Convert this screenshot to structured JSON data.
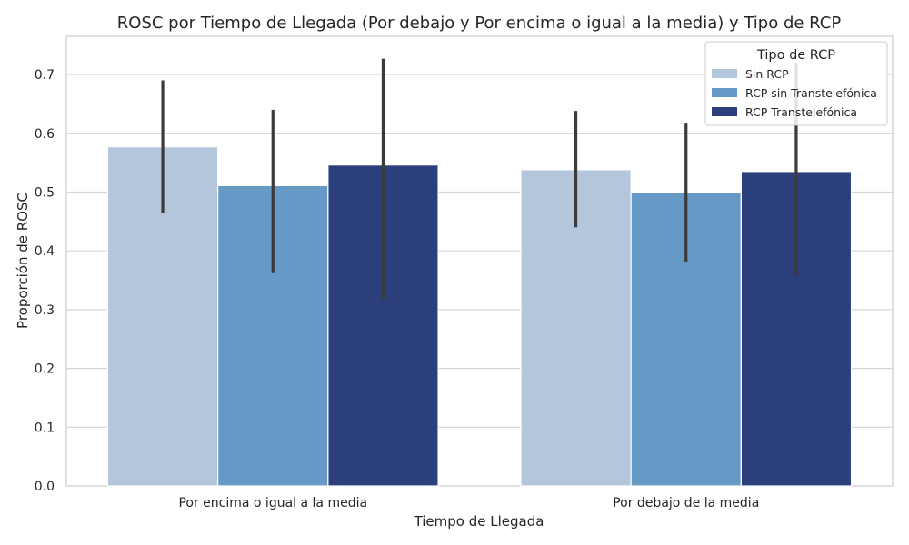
{
  "chart_data": {
    "type": "bar",
    "title": "ROSC por Tiempo de Llegada (Por debajo y Por encima o igual a la media) y Tipo de RCP",
    "xlabel": "Tiempo de Llegada",
    "ylabel": "Proporción de ROSC",
    "categories": [
      "Por encima o igual a la media",
      "Por debajo de la media"
    ],
    "ylim": [
      0,
      0.765
    ],
    "yticks": [
      "0.0",
      "0.1",
      "0.2",
      "0.3",
      "0.4",
      "0.5",
      "0.6",
      "0.7"
    ],
    "grid": true,
    "legend": {
      "title": "Tipo de RCP",
      "position": "top-right"
    },
    "series": [
      {
        "name": "Sin RCP",
        "color": "#b3c6db",
        "values": [
          0.577,
          0.538
        ],
        "ci_low": [
          0.465,
          0.44
        ],
        "ci_high": [
          0.69,
          0.638
        ]
      },
      {
        "name": "RCP sin Transtelefónica",
        "color": "#6699c6",
        "values": [
          0.511,
          0.5
        ],
        "ci_low": [
          0.362,
          0.382
        ],
        "ci_high": [
          0.64,
          0.618
        ]
      },
      {
        "name": "RCP Transtelefónica",
        "color": "#2b3f7d",
        "values": [
          0.546,
          0.535
        ],
        "ci_low": [
          0.318,
          0.358
        ],
        "ci_high": [
          0.727,
          0.72
        ]
      }
    ]
  }
}
